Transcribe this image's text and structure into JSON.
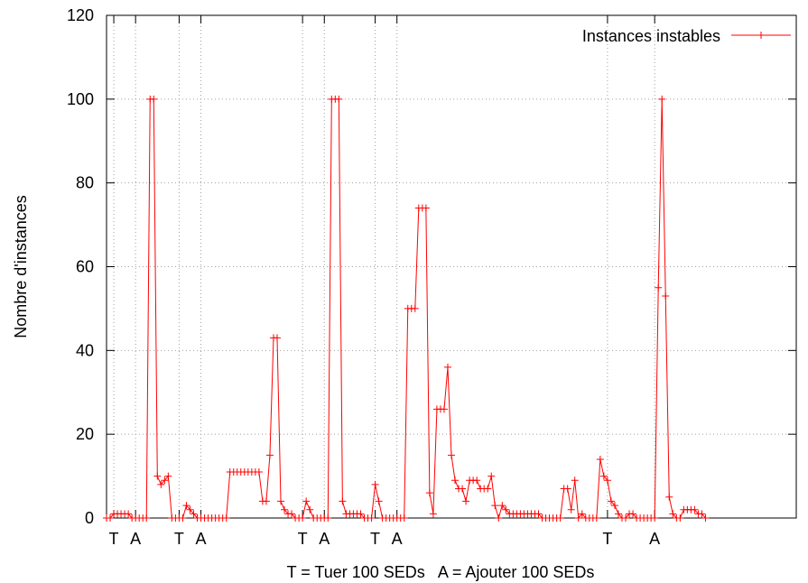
{
  "chart_data": {
    "type": "line",
    "title": "",
    "xlabel": "T = Tuer 100 SEDs   A = Ajouter 100 SEDs",
    "ylabel": "Nombre d'instances",
    "ylim": [
      0,
      120
    ],
    "yticks": [
      0,
      20,
      40,
      60,
      80,
      100,
      120
    ],
    "xlim": [
      0,
      190
    ],
    "grid": true,
    "legend_position": "top-right",
    "series": [
      {
        "name": "Instances instables",
        "color": "#ff0000",
        "marker": "plus",
        "values": [
          0,
          0,
          1,
          1,
          1,
          1,
          1,
          0,
          0,
          0,
          0,
          0,
          100,
          100,
          10,
          8,
          9,
          10,
          0,
          0,
          0,
          0,
          3,
          2,
          1,
          0,
          0,
          0,
          0,
          0,
          0,
          0,
          0,
          0,
          11,
          11,
          11,
          11,
          11,
          11,
          11,
          11,
          11,
          4,
          4,
          15,
          43,
          43,
          4,
          2,
          1,
          1,
          0,
          0,
          0,
          4,
          2,
          0,
          0,
          0,
          0,
          0,
          100,
          100,
          100,
          4,
          1,
          1,
          1,
          1,
          1,
          0,
          0,
          0,
          8,
          4,
          0,
          0,
          0,
          0,
          0,
          0,
          0,
          50,
          50,
          50,
          74,
          74,
          74,
          6,
          1,
          26,
          26,
          26,
          36,
          15,
          9,
          7,
          7,
          4,
          9,
          9,
          9,
          7,
          7,
          7,
          10,
          3,
          0,
          3,
          2,
          1,
          1,
          1,
          1,
          1,
          1,
          1,
          1,
          1,
          0,
          0,
          0,
          0,
          0,
          0,
          7,
          7,
          2,
          9,
          0,
          1,
          0,
          0,
          0,
          0,
          14,
          10,
          9,
          4,
          3,
          1,
          0,
          0,
          1,
          1,
          0,
          0,
          0,
          0,
          0,
          0,
          55,
          100,
          53,
          5,
          1,
          0,
          0,
          2,
          2,
          2,
          2,
          1,
          1,
          0
        ]
      }
    ],
    "event_markers": [
      {
        "label": "T",
        "x": 2
      },
      {
        "label": "A",
        "x": 8
      },
      {
        "label": "T",
        "x": 20
      },
      {
        "label": "A",
        "x": 26
      },
      {
        "label": "T",
        "x": 54
      },
      {
        "label": "A",
        "x": 60
      },
      {
        "label": "T",
        "x": 74
      },
      {
        "label": "A",
        "x": 80
      },
      {
        "label": "T",
        "x": 138
      },
      {
        "label": "A",
        "x": 151
      }
    ]
  }
}
